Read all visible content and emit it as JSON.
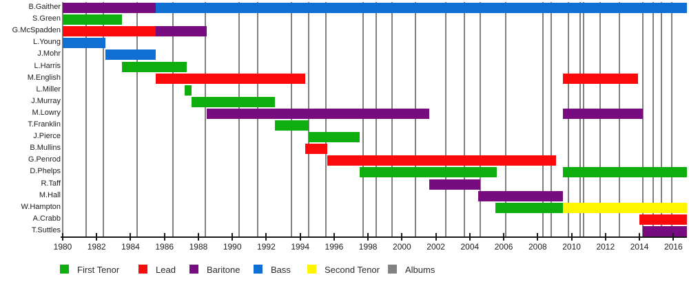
{
  "chart_data": {
    "type": "bar",
    "subtype": "gantt-membership-timeline",
    "title": "",
    "xlabel": "",
    "ylabel": "",
    "x_axis": {
      "min": 1980,
      "max": 2016.8,
      "ticks": [
        1980,
        1982,
        1984,
        1986,
        1988,
        1990,
        1992,
        1994,
        1996,
        1998,
        2000,
        2002,
        2004,
        2006,
        2008,
        2010,
        2012,
        2014,
        2016
      ]
    },
    "legend_position": "bottom",
    "roles": [
      {
        "name": "First Tenor",
        "color": "#0FAE0F"
      },
      {
        "name": "Lead",
        "color": "#FA0A0A"
      },
      {
        "name": "Baritone",
        "color": "#770B80"
      },
      {
        "name": "Bass",
        "color": "#0F6FD2"
      },
      {
        "name": "Second Tenor",
        "color": "#FFF500"
      },
      {
        "name": "Albums",
        "color": "#828282"
      }
    ],
    "members": [
      {
        "name": "B.Gaither",
        "stints": [
          {
            "role": "Baritone",
            "start": 1980,
            "end": 1985.5
          },
          {
            "role": "Bass",
            "start": 1985.5,
            "end": 2016.8
          }
        ]
      },
      {
        "name": "S.Green",
        "stints": [
          {
            "role": "First Tenor",
            "start": 1980,
            "end": 1983.5
          }
        ]
      },
      {
        "name": "G.McSpadden",
        "stints": [
          {
            "role": "Lead",
            "start": 1980,
            "end": 1985.5
          },
          {
            "role": "Baritone",
            "start": 1985.5,
            "end": 1988.5
          }
        ]
      },
      {
        "name": "L.Young",
        "stints": [
          {
            "role": "Bass",
            "start": 1980,
            "end": 1982.5
          }
        ]
      },
      {
        "name": "J.Mohr",
        "stints": [
          {
            "role": "Bass",
            "start": 1982.5,
            "end": 1985.5
          }
        ]
      },
      {
        "name": "L.Harris",
        "stints": [
          {
            "role": "First Tenor",
            "start": 1983.5,
            "end": 1987.3
          }
        ]
      },
      {
        "name": "M.English",
        "stints": [
          {
            "role": "Lead",
            "start": 1985.5,
            "end": 1994.3
          },
          {
            "role": "Lead",
            "start": 2009.5,
            "end": 2013.9
          }
        ]
      },
      {
        "name": "L.Miller",
        "stints": [
          {
            "role": "First Tenor",
            "start": 1987.2,
            "end": 1987.6
          }
        ]
      },
      {
        "name": "J.Murray",
        "stints": [
          {
            "role": "First Tenor",
            "start": 1987.6,
            "end": 1992.5
          }
        ]
      },
      {
        "name": "M.Lowry",
        "stints": [
          {
            "role": "Baritone",
            "start": 1988.5,
            "end": 2001.6
          },
          {
            "role": "Baritone",
            "start": 2009.5,
            "end": 2014.2
          }
        ]
      },
      {
        "name": "T.Franklin",
        "stints": [
          {
            "role": "First Tenor",
            "start": 1992.5,
            "end": 1994.5
          }
        ]
      },
      {
        "name": "J.Pierce",
        "stints": [
          {
            "role": "First Tenor",
            "start": 1994.5,
            "end": 1997.5
          }
        ]
      },
      {
        "name": "B.Mullins",
        "stints": [
          {
            "role": "Lead",
            "start": 1994.3,
            "end": 1995.6
          }
        ]
      },
      {
        "name": "G.Penrod",
        "stints": [
          {
            "role": "Lead",
            "start": 1995.6,
            "end": 2009.1
          }
        ]
      },
      {
        "name": "D.Phelps",
        "stints": [
          {
            "role": "First Tenor",
            "start": 1997.5,
            "end": 2005.6
          },
          {
            "role": "First Tenor",
            "start": 2009.5,
            "end": 2016.8
          }
        ]
      },
      {
        "name": "R.Taff",
        "stints": [
          {
            "role": "Baritone",
            "start": 2001.6,
            "end": 2004.6
          }
        ]
      },
      {
        "name": "M.Hall",
        "stints": [
          {
            "role": "Baritone",
            "start": 2004.5,
            "end": 2009.5
          }
        ]
      },
      {
        "name": "W.Hampton",
        "stints": [
          {
            "role": "First Tenor",
            "start": 2005.5,
            "end": 2009.5
          },
          {
            "role": "Second Tenor",
            "start": 2009.5,
            "end": 2016.8
          }
        ]
      },
      {
        "name": "A.Crabb",
        "stints": [
          {
            "role": "Lead",
            "start": 2014.0,
            "end": 2016.8
          }
        ]
      },
      {
        "name": "T.Suttles",
        "stints": [
          {
            "role": "Baritone",
            "start": 2014.2,
            "end": 2016.8
          }
        ]
      }
    ],
    "album_markers": [
      1981.4,
      1982.4,
      1984.4,
      1986.5,
      1988.4,
      1990.4,
      1991.5,
      1993.5,
      1994.5,
      1995.5,
      1997.7,
      1998.5,
      1999.4,
      2000.8,
      2002.6,
      2003.7,
      2004.6,
      2006.1,
      2008.3,
      2008.8,
      2009.8,
      2010.5,
      2010.7,
      2011.7,
      2012.8,
      2014.2,
      2014.8,
      2015.3,
      2015.9
    ]
  }
}
